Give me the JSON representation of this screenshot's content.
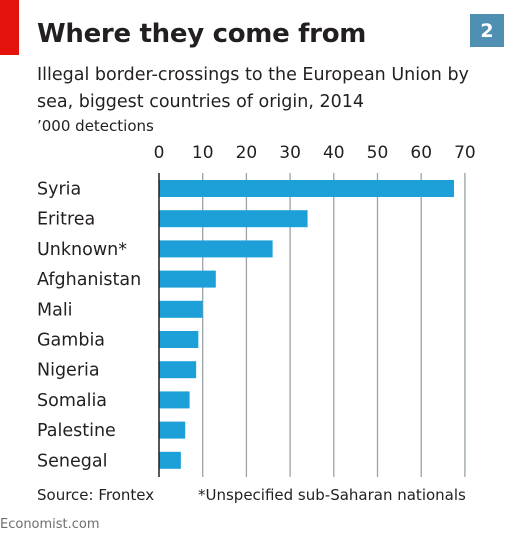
{
  "header": {
    "badge_number": "2",
    "title": "Where they come from",
    "subtitle": "Illegal border-crossings to the European Union by sea, biggest countries of origin, 2014",
    "unit": "’000 detections"
  },
  "footer": {
    "source": "Source: Frontex",
    "footnote": "*Unspecified sub-Saharan nationals",
    "watermark": "Economist.com"
  },
  "colors": {
    "bar": "#1d9fd8",
    "gridline": "#9aa3a8",
    "accent_red": "#e3120b",
    "badge": "#4f8fb2"
  },
  "chart_data": {
    "type": "bar",
    "orientation": "horizontal",
    "categories": [
      "Syria",
      "Eritrea",
      "Unknown*",
      "Afghanistan",
      "Mali",
      "Gambia",
      "Nigeria",
      "Somalia",
      "Palestine",
      "Senegal"
    ],
    "values": [
      67.5,
      34,
      26,
      13,
      10,
      9,
      8.5,
      7,
      6,
      5
    ],
    "xlim": [
      0,
      70
    ],
    "ticks": [
      0,
      10,
      20,
      30,
      40,
      50,
      60,
      70
    ],
    "grid": true,
    "axis_position": "top"
  }
}
